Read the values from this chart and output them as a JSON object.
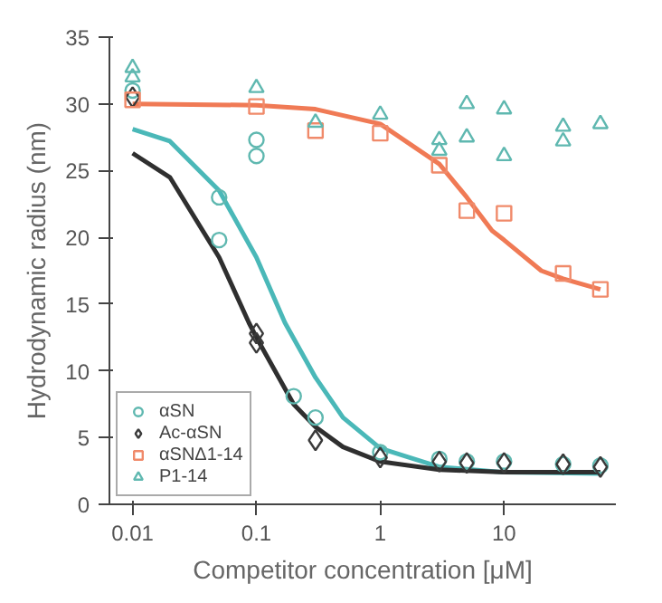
{
  "chart_data": {
    "type": "scatter",
    "xlabel": "Competitor concentration [μM]",
    "ylabel": "Hydrodynamic radius (nm)",
    "log": "x",
    "xlim": [
      0.0065,
      80
    ],
    "xticks": [
      0.01,
      0.1,
      1,
      10
    ],
    "ylim": [
      0,
      35
    ],
    "yticks": [
      0,
      5,
      10,
      15,
      20,
      25,
      30,
      35
    ],
    "grid": false,
    "legend": "bottom left",
    "series": [
      {
        "type": "line",
        "color": "#4ab8b8",
        "x": [
          0.01,
          0.02,
          0.05,
          0.1,
          0.17,
          0.3,
          0.5,
          1,
          3,
          10,
          60
        ],
        "values": [
          28.1,
          27.2,
          23.5,
          18.5,
          13.6,
          9.5,
          6.5,
          4.2,
          2.8,
          2.4,
          2.3
        ]
      },
      {
        "type": "line",
        "color": "#2f2f2f",
        "x": [
          0.01,
          0.02,
          0.05,
          0.087,
          0.1,
          0.2,
          0.3,
          0.5,
          1,
          3,
          10,
          60
        ],
        "values": [
          26.3,
          24.5,
          18.5,
          13.6,
          12.5,
          7.5,
          5.8,
          4.3,
          3.2,
          2.6,
          2.4,
          2.4
        ]
      },
      {
        "type": "line",
        "color": "#f07a55",
        "x": [
          0.01,
          0.1,
          0.3,
          1,
          3,
          5,
          8,
          10,
          20,
          30,
          60
        ],
        "values": [
          30.0,
          29.9,
          29.6,
          28.5,
          25.5,
          23.0,
          20.5,
          19.8,
          17.5,
          16.9,
          16.1
        ]
      },
      {
        "name": "αSN",
        "marker": "circle",
        "color": "#5fb8b0",
        "x": [
          0.01,
          0.05,
          0.05,
          0.1,
          0.1,
          0.2,
          0.3,
          1,
          3,
          5,
          10,
          30,
          60
        ],
        "values": [
          31.0,
          23.0,
          19.8,
          27.3,
          26.1,
          8.1,
          6.5,
          3.9,
          3.4,
          3.2,
          3.2,
          3.0,
          2.9
        ]
      },
      {
        "name": "Ac-αSN",
        "marker": "diamond",
        "color": "#3a3a3a",
        "x": [
          0.01,
          0.1,
          0.1,
          0.3,
          1,
          3,
          5,
          10,
          30,
          60
        ],
        "values": [
          30.5,
          12.8,
          12.1,
          4.8,
          3.5,
          3.2,
          3.1,
          3.1,
          3.0,
          2.8
        ]
      },
      {
        "name": "αSNΔ1-14",
        "marker": "square",
        "color": "#f08a6a",
        "x": [
          0.01,
          0.1,
          0.3,
          1,
          3,
          5,
          10,
          30,
          60
        ],
        "values": [
          30.3,
          29.8,
          28.0,
          27.8,
          25.4,
          22.0,
          21.8,
          17.3,
          16.1
        ]
      },
      {
        "name": "P1-14",
        "marker": "triangle",
        "color": "#5fb8b0",
        "x": [
          0.01,
          0.01,
          0.1,
          0.3,
          1,
          3,
          3,
          5,
          5,
          10,
          10,
          30,
          30,
          60
        ],
        "values": [
          32.7,
          32.0,
          31.2,
          28.6,
          29.2,
          27.3,
          26.5,
          30.0,
          27.5,
          29.6,
          26.1,
          28.3,
          27.2,
          28.5
        ]
      }
    ]
  }
}
